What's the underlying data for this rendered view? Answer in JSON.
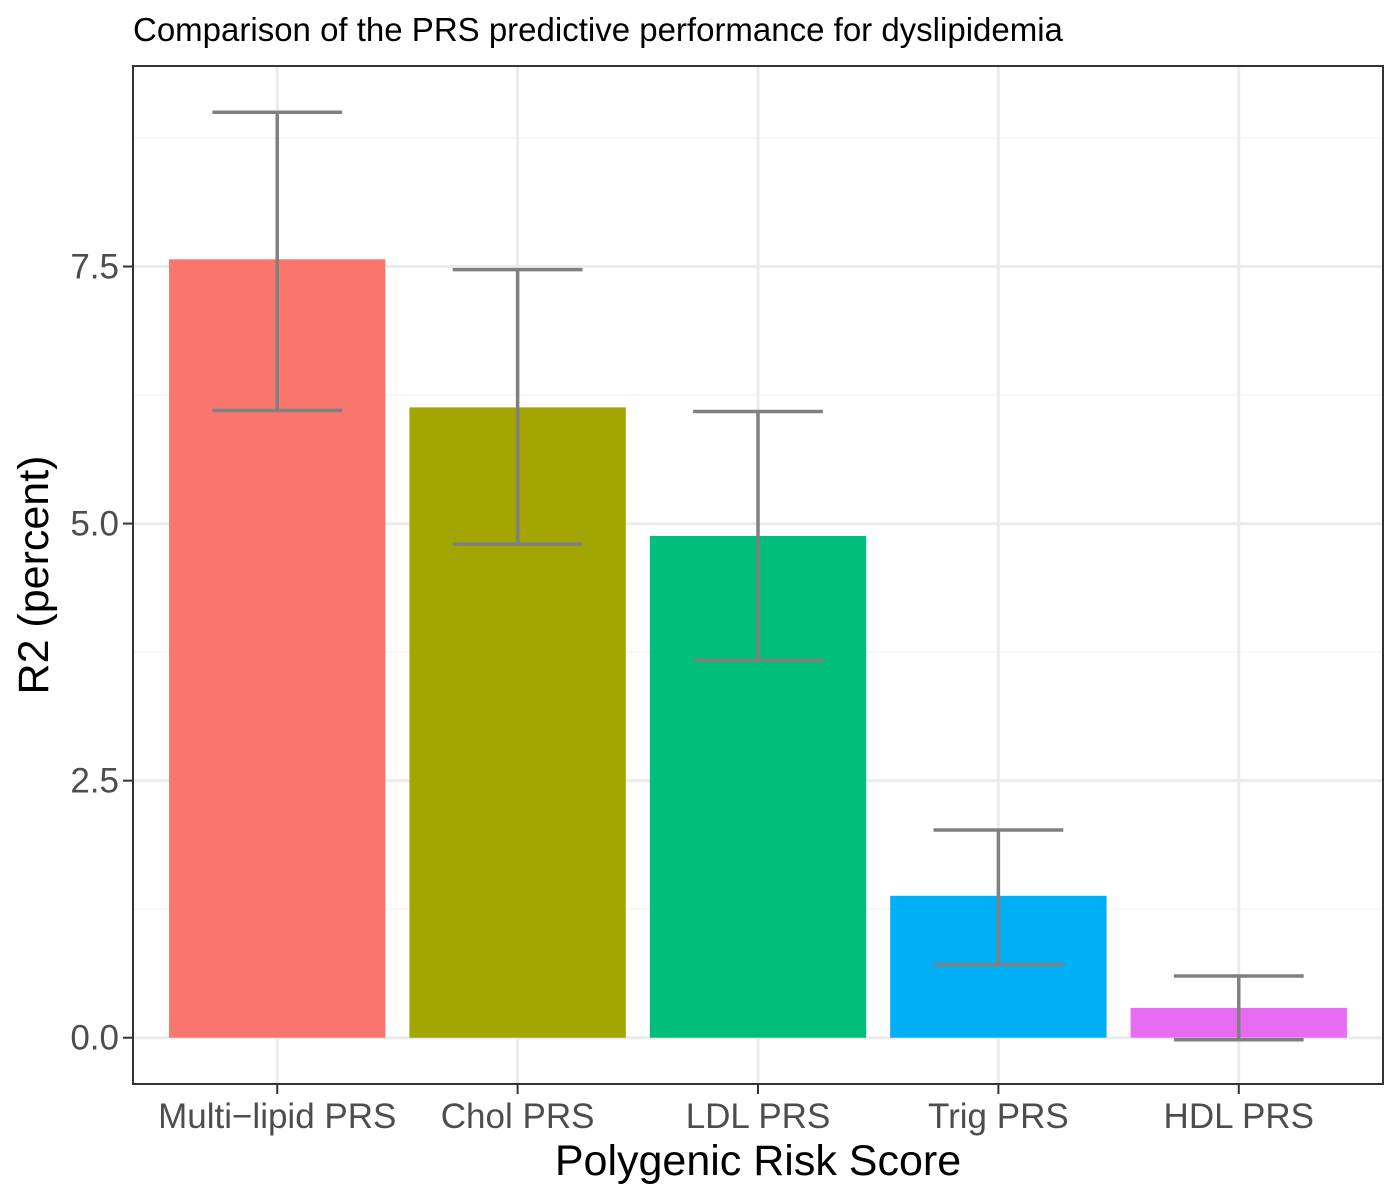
{
  "chart_data": {
    "type": "bar",
    "title": "Comparison of the PRS predictive performance for dyslipidemia",
    "xlabel": "Polygenic Risk Score",
    "ylabel": "R2 (percent)",
    "categories": [
      "Multi−lipid PRS",
      "Chol PRS",
      "LDL PRS",
      "Trig PRS",
      "HDL PRS"
    ],
    "values": [
      7.57,
      6.13,
      4.88,
      1.38,
      0.29
    ],
    "error_low": [
      6.1,
      4.8,
      3.67,
      0.71,
      -0.02
    ],
    "error_high": [
      9.0,
      7.47,
      6.09,
      2.02,
      0.6
    ],
    "colors": [
      "#F8766D",
      "#A3A500",
      "#00BF7D",
      "#00B0F6",
      "#E76BF3"
    ],
    "error_bar_color": "#808080",
    "ylim": [
      -0.45,
      9.45
    ],
    "yticks": [
      0.0,
      2.5,
      5.0,
      7.5
    ],
    "ytick_labels": [
      "0.0",
      "2.5",
      "5.0",
      "7.5"
    ],
    "grid": true,
    "legend": "none"
  }
}
